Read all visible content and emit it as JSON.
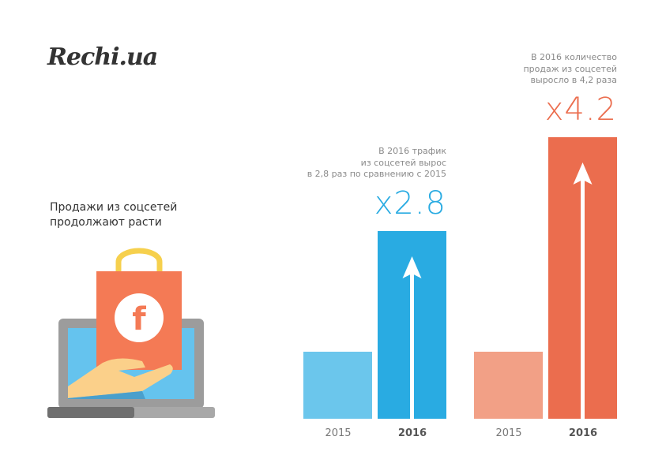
{
  "logo": "Rechi.ua",
  "subtitle_lines": [
    "Продажи из соцсетей",
    "продолжают расти"
  ],
  "colors": {
    "blue_light": "#6bc6ec",
    "blue": "#29abe2",
    "orange_light": "#f2a086",
    "orange": "#eb6d4e",
    "bag": "#f47a55",
    "handle": "#f6d04d",
    "laptop": "#9c9c9c",
    "screen": "#65c3ee",
    "hand": "#fbd08a"
  },
  "chart_data": [
    {
      "type": "bar",
      "categories": [
        "2015",
        "2016"
      ],
      "values": [
        1,
        2.8
      ],
      "multiplier_label": "x2.8",
      "annotation_lines": [
        "В 2016 трафик",
        "из соцсетей вырос",
        "в 2,8 раз по сравнению с 2015"
      ],
      "bold_category": "2016",
      "arrow_on": "2016"
    },
    {
      "type": "bar",
      "categories": [
        "2015",
        "2016"
      ],
      "values": [
        1,
        4.2
      ],
      "multiplier_label": "x4.2",
      "annotation_lines": [
        "В 2016 количество",
        "продаж из соцсетей",
        "выросло в 4,2 раза"
      ],
      "bold_category": "2016",
      "arrow_on": "2016"
    }
  ],
  "illustration": {
    "icon": "facebook-shopping-bag-on-laptop",
    "bag_letter": "f"
  }
}
